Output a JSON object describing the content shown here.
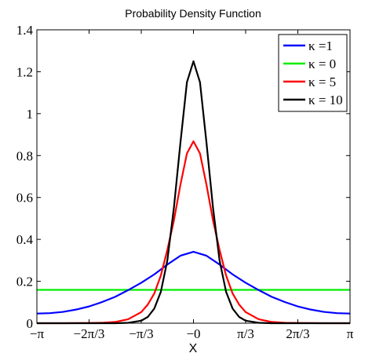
{
  "chart_data": {
    "type": "line",
    "title": "Probability Density Function",
    "xlabel": "X",
    "ylabel": "",
    "xlim": [
      -3.14159,
      3.14159
    ],
    "ylim": [
      0,
      1.4
    ],
    "grid": false,
    "legend_position": "top-right",
    "x_ticks": [
      {
        "value": -3.14159,
        "label": "−π"
      },
      {
        "value": -2.0944,
        "label": "−2π/3"
      },
      {
        "value": -1.0472,
        "label": "−π/3"
      },
      {
        "value": 0,
        "label": "−0"
      },
      {
        "value": 1.0472,
        "label": "π/3"
      },
      {
        "value": 2.0944,
        "label": "2π/3"
      },
      {
        "value": 3.14159,
        "label": "π"
      }
    ],
    "y_ticks": [
      {
        "value": 0,
        "label": "0"
      },
      {
        "value": 0.2,
        "label": "0.2"
      },
      {
        "value": 0.4,
        "label": "0.4"
      },
      {
        "value": 0.6,
        "label": "0.6"
      },
      {
        "value": 0.8,
        "label": "0.8"
      },
      {
        "value": 1,
        "label": "1"
      },
      {
        "value": 1.2,
        "label": "1.2"
      },
      {
        "value": 1.4,
        "label": "1.4"
      }
    ],
    "series": [
      {
        "name": "κ =1",
        "color": "#0000ff",
        "x": [
          -3.1416,
          -2.8798,
          -2.618,
          -2.3562,
          -2.0944,
          -1.8326,
          -1.5708,
          -1.309,
          -1.0472,
          -0.7854,
          -0.5236,
          -0.2618,
          0,
          0.2618,
          0.5236,
          0.7854,
          1.0472,
          1.309,
          1.5708,
          1.8326,
          2.0944,
          2.3562,
          2.618,
          2.8798,
          3.1416
        ],
        "y": [
          0.046,
          0.048,
          0.054,
          0.065,
          0.08,
          0.101,
          0.126,
          0.158,
          0.193,
          0.233,
          0.28,
          0.322,
          0.341,
          0.322,
          0.28,
          0.233,
          0.193,
          0.158,
          0.126,
          0.101,
          0.08,
          0.065,
          0.054,
          0.048,
          0.046
        ]
      },
      {
        "name": "κ = 0",
        "color": "#00ee00",
        "x": [
          -3.1416,
          3.1416
        ],
        "y": [
          0.159,
          0.159
        ]
      },
      {
        "name": "κ = 5",
        "color": "#ff0000",
        "x": [
          -3.1416,
          -2.618,
          -2.0944,
          -1.8326,
          -1.5708,
          -1.309,
          -1.0472,
          -0.9163,
          -0.7854,
          -0.6545,
          -0.5236,
          -0.3927,
          -0.2618,
          -0.1309,
          0,
          0.1309,
          0.2618,
          0.3927,
          0.5236,
          0.6545,
          0.7854,
          0.9163,
          1.0472,
          1.309,
          1.5708,
          1.8326,
          2.0944,
          2.618,
          3.1416
        ],
        "y": [
          0.0,
          0.0,
          0.001,
          0.002,
          0.006,
          0.019,
          0.053,
          0.089,
          0.142,
          0.228,
          0.35,
          0.49,
          0.66,
          0.81,
          0.868,
          0.81,
          0.66,
          0.49,
          0.35,
          0.228,
          0.142,
          0.089,
          0.053,
          0.019,
          0.006,
          0.002,
          0.001,
          0.0,
          0.0
        ]
      },
      {
        "name": "κ = 10",
        "color": "#000000",
        "x": [
          -3.1416,
          -2.0944,
          -1.5708,
          -1.309,
          -1.0472,
          -0.9163,
          -0.7854,
          -0.6545,
          -0.5236,
          -0.3927,
          -0.2618,
          -0.1309,
          0,
          0.1309,
          0.2618,
          0.3927,
          0.5236,
          0.6545,
          0.7854,
          0.9163,
          1.0472,
          1.309,
          1.5708,
          2.0944,
          3.1416
        ],
        "y": [
          0.0,
          0.0,
          0.0,
          0.002,
          0.012,
          0.03,
          0.07,
          0.15,
          0.3,
          0.55,
          0.86,
          1.15,
          1.25,
          1.15,
          0.86,
          0.55,
          0.3,
          0.15,
          0.07,
          0.03,
          0.012,
          0.002,
          0.0,
          0.0,
          0.0
        ]
      }
    ]
  }
}
